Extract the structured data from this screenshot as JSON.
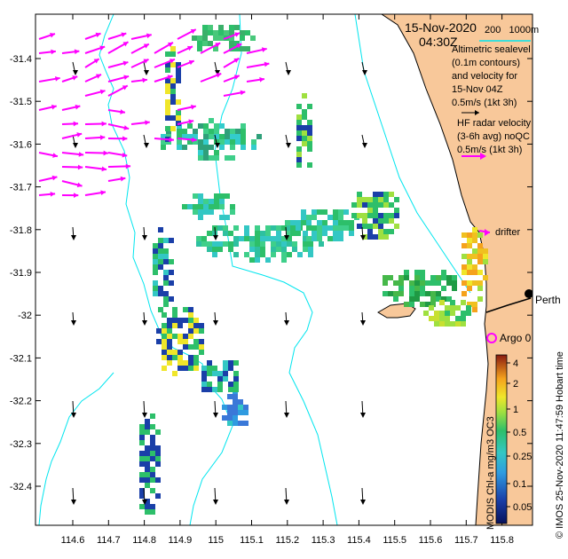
{
  "map": {
    "date": "15-Nov-2020",
    "time": "04:30Z",
    "legend": {
      "depth_contours": "200   1000m",
      "sealevel_lines": [
        "Altimetric sealevel",
        "(0.1m contours)",
        "and velocity for",
        "15-Nov 04Z",
        "0.5m/s (1kt 3h)"
      ],
      "radar_lines": [
        "HF radar velocity",
        "(3-6h avg) noQC",
        "0.5m/s (1kt 3h)"
      ],
      "drifter": "drifter",
      "city": "Perth",
      "argo": "Argo 0"
    },
    "y_ticks": [
      "-31.4",
      "-31.5",
      "-31.6",
      "-31.7",
      "-31.8",
      "-31.9",
      "-32",
      "-32.1",
      "-32.2",
      "-32.3",
      "-32.4"
    ],
    "x_ticks": [
      "114.6",
      "114.7",
      "114.8",
      "114.9",
      "115",
      "115.1",
      "115.2",
      "115.3",
      "115.4",
      "115.5",
      "115.6",
      "115.7",
      "115.8"
    ],
    "colorbar": {
      "ticks": [
        "4",
        "2",
        "1",
        "0.5",
        "0.25",
        "0.1",
        "0.05"
      ],
      "label": "MODIS Chl-a mg/m3 OC3",
      "credit": "© IMOS 25-Nov-2020 11:47:59 Hobart time"
    },
    "colors": {
      "land": "#f8c89a",
      "contour": "#00e5ee",
      "radar_arrow": "#ff00ff",
      "altimetry_arrow": "#000000",
      "argo": "#ff00ff"
    }
  }
}
